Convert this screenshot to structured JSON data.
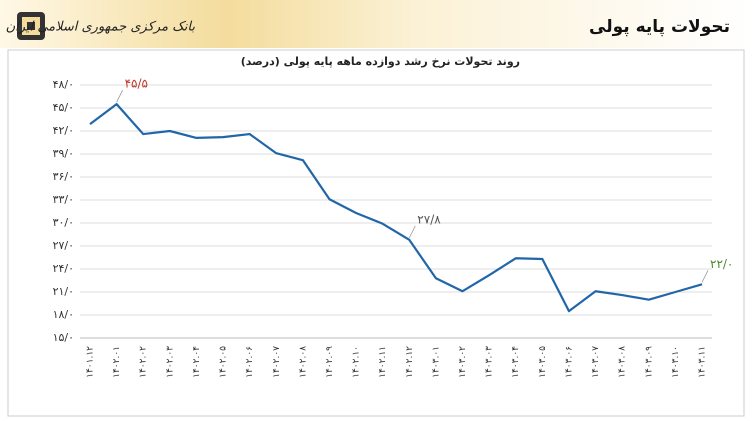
{
  "header": {
    "bank_name": "بانک مرکزی جمهوری اسلامی ایران"
  },
  "chart_data": {
    "type": "line",
    "title": "تحولات پایه پولی",
    "subtitle": "روند تحولات نرخ رشد دوازده ماهه پایه پولی (درصد)",
    "categories": [
      "۱۴۰۱.۱۲",
      "۱۴۰۲.۰۱",
      "۱۴۰۲.۰۲",
      "۱۴۰۲.۰۳",
      "۱۴۰۲.۰۴",
      "۱۴۰۲.۰۵",
      "۱۴۰۲.۰۶",
      "۱۴۰۲.۰۷",
      "۱۴۰۲.۰۸",
      "۱۴۰۲.۰۹",
      "۱۴۰۲.۱۰",
      "۱۴۰۲.۱۱",
      "۱۴۰۲.۱۲",
      "۱۴۰۳.۰۱",
      "۱۴۰۳.۰۲",
      "۱۴۰۳.۰۳",
      "۱۴۰۳.۰۴",
      "۱۴۰۳.۰۵",
      "۱۴۰۳.۰۶",
      "۱۴۰۳.۰۷",
      "۱۴۰۳.۰۸",
      "۱۴۰۳.۰۹",
      "۱۴۰۳.۱۰",
      "۱۴۰۳.۱۱"
    ],
    "values": [
      42.9,
      45.5,
      41.6,
      42.0,
      41.1,
      41.2,
      41.6,
      39.1,
      38.2,
      33.1,
      31.3,
      29.9,
      27.8,
      22.8,
      21.1,
      23.2,
      25.4,
      25.3,
      18.5,
      21.1,
      20.6,
      20.0,
      21.0,
      22.0
    ],
    "value_labels": [
      null,
      "۴۵/۵",
      null,
      null,
      null,
      null,
      null,
      null,
      null,
      null,
      null,
      null,
      "۲۷/۸",
      null,
      null,
      null,
      null,
      null,
      null,
      null,
      null,
      null,
      null,
      "۲۲/۰"
    ],
    "value_label_colors": [
      null,
      "#c0392b",
      null,
      null,
      null,
      null,
      null,
      null,
      null,
      null,
      null,
      null,
      "#555555",
      null,
      null,
      null,
      null,
      null,
      null,
      null,
      null,
      null,
      null,
      "#4f8a2e"
    ],
    "color": "#2166a8",
    "ylim": [
      15,
      48
    ],
    "yticks": [
      {
        "value": 15,
        "label": "۱۵/۰"
      },
      {
        "value": 18,
        "label": "۱۸/۰"
      },
      {
        "value": 21,
        "label": "۲۱/۰"
      },
      {
        "value": 24,
        "label": "۲۴/۰"
      },
      {
        "value": 27,
        "label": "۲۷/۰"
      },
      {
        "value": 30,
        "label": "۳۰/۰"
      },
      {
        "value": 33,
        "label": "۳۳/۰"
      },
      {
        "value": 36,
        "label": "۳۶/۰"
      },
      {
        "value": 39,
        "label": "۳۹/۰"
      },
      {
        "value": 42,
        "label": "۴۲/۰"
      },
      {
        "value": 45,
        "label": "۴۵/۰"
      },
      {
        "value": 48,
        "label": "۴۸/۰"
      }
    ],
    "grid": true
  }
}
